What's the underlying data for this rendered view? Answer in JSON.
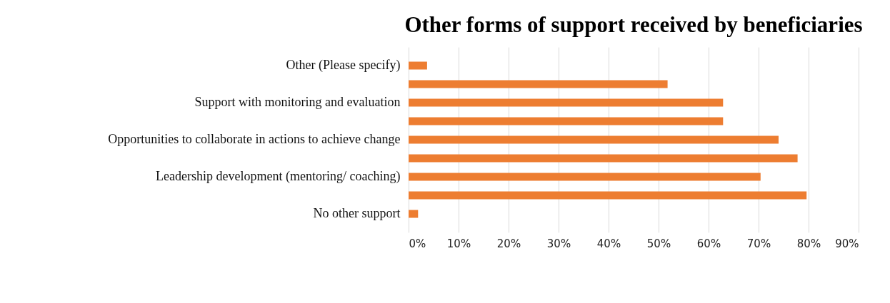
{
  "chart_data": {
    "type": "bar",
    "orientation": "horizontal",
    "title": "Other forms of support received by beneficiaries",
    "categories": [
      "Other (Please specify)",
      null,
      "Support with monitoring and evaluation",
      null,
      "Opportunities to collaborate in actions to achieve change",
      null,
      "Leadership development (mentoring/ coaching)",
      null,
      "No other support"
    ],
    "values": [
      3.7,
      51.8,
      62.9,
      62.9,
      74.0,
      77.8,
      70.4,
      79.6,
      1.9
    ],
    "color": "#ed7d31",
    "xlim": [
      0,
      90
    ],
    "xticks": [
      {
        "value": 0,
        "label": "0%"
      },
      {
        "value": 10,
        "label": "10%"
      },
      {
        "value": 20,
        "label": "20%"
      },
      {
        "value": 30,
        "label": "30%"
      },
      {
        "value": 40,
        "label": "40%"
      },
      {
        "value": 50,
        "label": "50%"
      },
      {
        "value": 60,
        "label": "60%"
      },
      {
        "value": 70,
        "label": "70%"
      },
      {
        "value": 80,
        "label": "80%"
      },
      {
        "value": 90,
        "label": "90%"
      }
    ],
    "grid": "x"
  }
}
